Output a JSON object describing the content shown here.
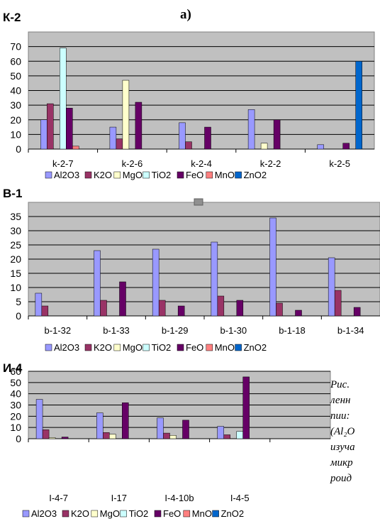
{
  "header": {
    "label": "а)"
  },
  "colors": {
    "Al2O3": "#9999ff",
    "K2O": "#993366",
    "MgO": "#ffffcc",
    "TiO2": "#ccffff",
    "FeO": "#660066",
    "MnO": "#ff8080",
    "ZnO2": "#0066cc",
    "plot_bg": "#c0c0c0",
    "grid": "#000000"
  },
  "caption_fragments": [
    "Рис.",
    "ленн",
    "пии:",
    "(Al₂O",
    "изуча",
    "микр",
    "роид"
  ],
  "chart_data": [
    {
      "type": "bar",
      "title": "К-2",
      "categories": [
        "k-2-7",
        "k-2-6",
        "k-2-4",
        "k-2-2",
        "k-2-5"
      ],
      "ylim": [
        0,
        80
      ],
      "yticks": [
        0,
        10,
        20,
        30,
        40,
        50,
        60,
        70
      ],
      "grid": true,
      "legend_position": "bottom",
      "series": [
        {
          "name": "Al2O3",
          "values": [
            20,
            15,
            18,
            27,
            3
          ]
        },
        {
          "name": "K2O",
          "values": [
            31,
            7,
            5,
            0,
            0
          ]
        },
        {
          "name": "MgO",
          "values": [
            0,
            47,
            0,
            4,
            0
          ]
        },
        {
          "name": "TiO2",
          "values": [
            69,
            0,
            0,
            0,
            0
          ]
        },
        {
          "name": "FeO",
          "values": [
            28,
            32,
            15,
            20,
            4
          ]
        },
        {
          "name": "MnO",
          "values": [
            2,
            0,
            0,
            0,
            0
          ]
        },
        {
          "name": "ZnO2",
          "values": [
            0,
            0,
            0,
            0,
            60
          ]
        }
      ]
    },
    {
      "type": "bar",
      "title": "В-1",
      "categories": [
        "b-1-32",
        "b-1-33",
        "b-1-29",
        "b-1-30",
        "b-1-18",
        "b-1-34"
      ],
      "ylim": [
        0,
        40
      ],
      "yticks": [
        0,
        5,
        10,
        15,
        20,
        25,
        30,
        35
      ],
      "grid": true,
      "legend_position": "bottom",
      "series": [
        {
          "name": "Al2O3",
          "values": [
            8,
            23,
            23.5,
            26,
            34.5,
            20.5
          ]
        },
        {
          "name": "K2O",
          "values": [
            3.5,
            5.5,
            5.5,
            7,
            4.5,
            9
          ]
        },
        {
          "name": "MgO",
          "values": [
            0,
            0,
            0,
            0,
            0,
            0
          ]
        },
        {
          "name": "TiO2",
          "values": [
            0,
            0,
            0,
            0,
            0,
            0
          ]
        },
        {
          "name": "FeO",
          "values": [
            0,
            12,
            3.5,
            5.5,
            2,
            3
          ]
        },
        {
          "name": "MnO",
          "values": [
            0,
            0,
            0,
            0,
            0,
            0
          ]
        },
        {
          "name": "ZnO2",
          "values": [
            0,
            0,
            0,
            0,
            0,
            0
          ]
        }
      ]
    },
    {
      "type": "bar",
      "title": "И-4",
      "categories": [
        "I-4-7",
        "I-17",
        "I-4-10b",
        "I-4-5",
        ""
      ],
      "ylim": [
        0,
        60
      ],
      "yticks": [
        0,
        10,
        20,
        30,
        40,
        50,
        60
      ],
      "grid": true,
      "legend_position": "bottom",
      "series": [
        {
          "name": "Al2O3",
          "values": [
            35,
            23,
            18.5,
            11,
            0
          ]
        },
        {
          "name": "K2O",
          "values": [
            8,
            5.5,
            5,
            3.5,
            0
          ]
        },
        {
          "name": "MgO",
          "values": [
            1,
            4,
            3,
            0,
            0
          ]
        },
        {
          "name": "TiO2",
          "values": [
            0,
            0,
            0,
            6.5,
            0
          ]
        },
        {
          "name": "FeO",
          "values": [
            1.5,
            32,
            16.5,
            55,
            0
          ]
        },
        {
          "name": "MnO",
          "values": [
            0,
            0,
            0,
            0,
            0
          ]
        },
        {
          "name": "ZnO2",
          "values": [
            0,
            0,
            0,
            0,
            0
          ]
        }
      ]
    }
  ]
}
